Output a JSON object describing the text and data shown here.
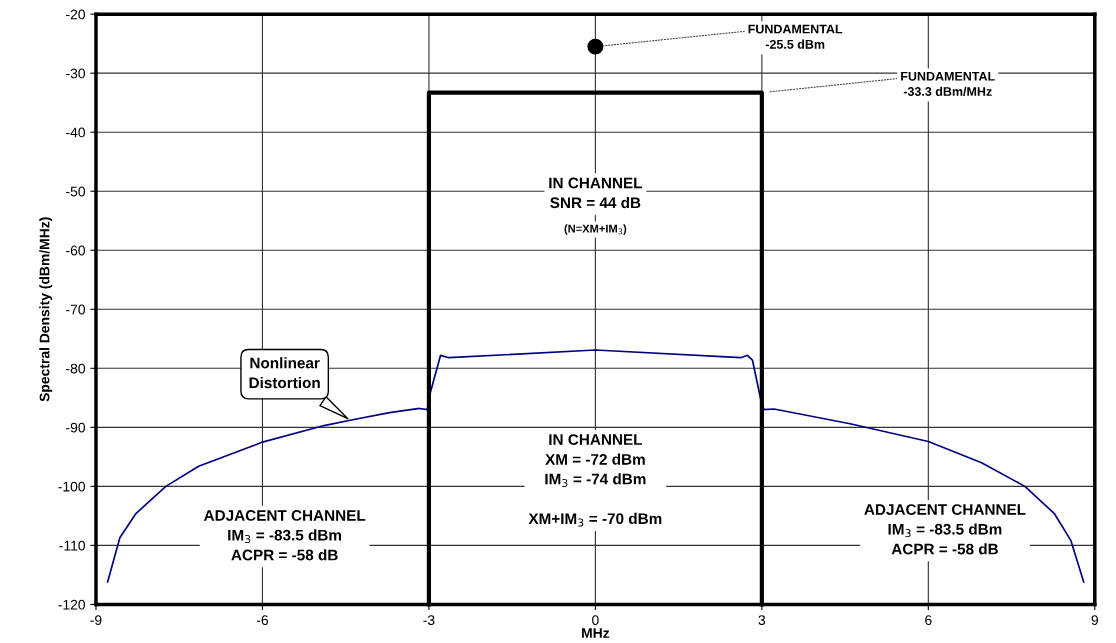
{
  "chart_data": {
    "type": "line",
    "xlabel": "MHz",
    "ylabel": "Spectral Density (dBm/MHz)",
    "xlim": [
      -9,
      9
    ],
    "xticks": [
      -9,
      -6,
      -3,
      0,
      3,
      6,
      9
    ],
    "ylim": [
      -120,
      -20
    ],
    "yticks": [
      -120,
      -110,
      -100,
      -90,
      -80,
      -70,
      -60,
      -50,
      -40,
      -30,
      -20
    ],
    "grid": true,
    "series": [
      {
        "color": "#000080",
        "x": [
          -8.79,
          -8.57,
          -8.28,
          -7.74,
          -7.15,
          -6.0,
          -4.89,
          -4.42,
          -3.71,
          -3.17,
          -3.03,
          -2.98,
          -2.79,
          -2.64,
          0,
          2.62,
          2.74,
          2.83,
          2.99,
          3.04,
          3.22,
          4.59,
          6.0,
          6.96,
          7.74,
          8.27,
          8.57,
          8.8
        ],
        "values": [
          -116.2,
          -108.7,
          -104.6,
          -100.0,
          -96.6,
          -92.5,
          -89.7,
          -88.8,
          -87.5,
          -86.8,
          -87.0,
          -84.3,
          -77.8,
          -78.2,
          -76.9,
          -78.2,
          -77.8,
          -78.6,
          -85.7,
          -87.0,
          -86.9,
          -89.4,
          -92.4,
          -96.0,
          -100.0,
          -104.6,
          -109.2,
          -116.2
        ]
      },
      {
        "color": "#000000",
        "x": [
          -3,
          -3,
          3,
          3
        ],
        "values": [
          -120,
          -33.3,
          -33.3,
          -120
        ]
      },
      {
        "type": "scatter",
        "color": "#000000",
        "marker": "circle",
        "x": [
          0
        ],
        "values": [
          -25.5
        ]
      }
    ],
    "annotations": [
      {
        "text": "FUNDAMENTAL\n-25.5 dBm",
        "x": 0,
        "y": -25.5
      },
      {
        "text": "FUNDAMENTAL\n-33.3 dBm/MHz",
        "x": 3,
        "y": -33.3
      },
      {
        "text": "Nonlinear\nDistortion",
        "x": -4.42,
        "y": -88.8
      },
      "IN CHANNEL\nSNR = 44 dB",
      "(N=XM+IM$_{3}$)",
      "IN CHANNEL\nXM = -72 dBm\nIM$_{3}$ = -74 dBm\n\nXM+IM$_{3}$ = -70 dBm",
      "ADJACENT CHANNEL\nIM$_{3}$ = -83.5 dBm\nACPR = -58 dB",
      "ADJACENT CHANNEL\nIM$_{3}$ = -83.5 dBm\nACPR = -58 dB"
    ]
  }
}
